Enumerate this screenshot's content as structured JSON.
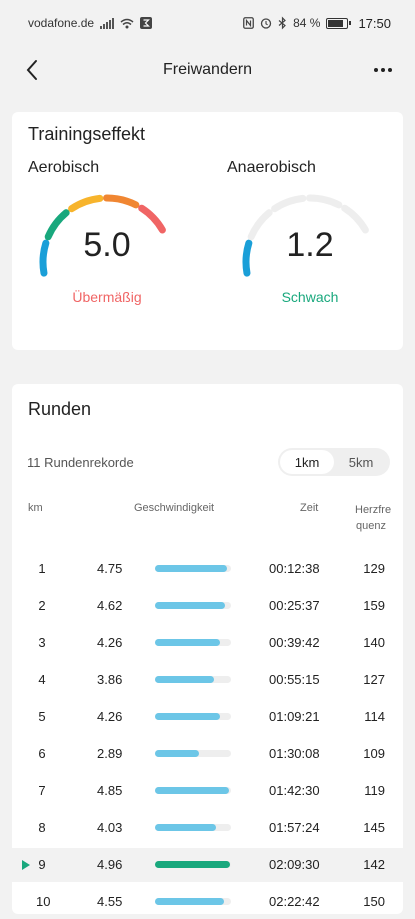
{
  "status_bar": {
    "carrier": "vodafone.de",
    "battery": "84 %",
    "time": "17:50"
  },
  "header": {
    "title": "Freiwandern"
  },
  "training_effect": {
    "title": "Trainingseffekt",
    "aerobic": {
      "label": "Aerobisch",
      "value": "5.0",
      "status": "Übermäßig",
      "status_color": "#f06565",
      "segments_lit": 5
    },
    "anaerobic": {
      "label": "Anaerobisch",
      "value": "1.2",
      "status": "Schwach",
      "status_color": "#19a87d",
      "segments_lit": 1
    },
    "segment_colors": [
      "#1a9fd8",
      "#19a87d",
      "#f7b42c",
      "#f08632",
      "#f06565"
    ],
    "segment_inactive_color": "#eeeeee"
  },
  "laps": {
    "title": "Runden",
    "records": "11 Rundenrekorde",
    "toggle": {
      "option1": "1km",
      "option2": "5km",
      "selected": "1km"
    },
    "headers": {
      "km": "km",
      "speed": "Geschwindigkeit",
      "time": "Zeit",
      "hr_line1": "Herzfre",
      "hr_line2": "quenz"
    },
    "bar_max": 5.0,
    "rows": [
      {
        "km": "1",
        "pace": "4.75",
        "time": "00:12:38",
        "hr": "129"
      },
      {
        "km": "2",
        "pace": "4.62",
        "time": "00:25:37",
        "hr": "159"
      },
      {
        "km": "3",
        "pace": "4.26",
        "time": "00:39:42",
        "hr": "140"
      },
      {
        "km": "4",
        "pace": "3.86",
        "time": "00:55:15",
        "hr": "127"
      },
      {
        "km": "5",
        "pace": "4.26",
        "time": "01:09:21",
        "hr": "114"
      },
      {
        "km": "6",
        "pace": "2.89",
        "time": "01:30:08",
        "hr": "109"
      },
      {
        "km": "7",
        "pace": "4.85",
        "time": "01:42:30",
        "hr": "119"
      },
      {
        "km": "8",
        "pace": "4.03",
        "time": "01:57:24",
        "hr": "145"
      },
      {
        "km": "9",
        "pace": "4.96",
        "time": "02:09:30",
        "hr": "142",
        "current": true
      },
      {
        "km": "10",
        "pace": "4.55",
        "time": "02:22:42",
        "hr": "150"
      }
    ]
  }
}
